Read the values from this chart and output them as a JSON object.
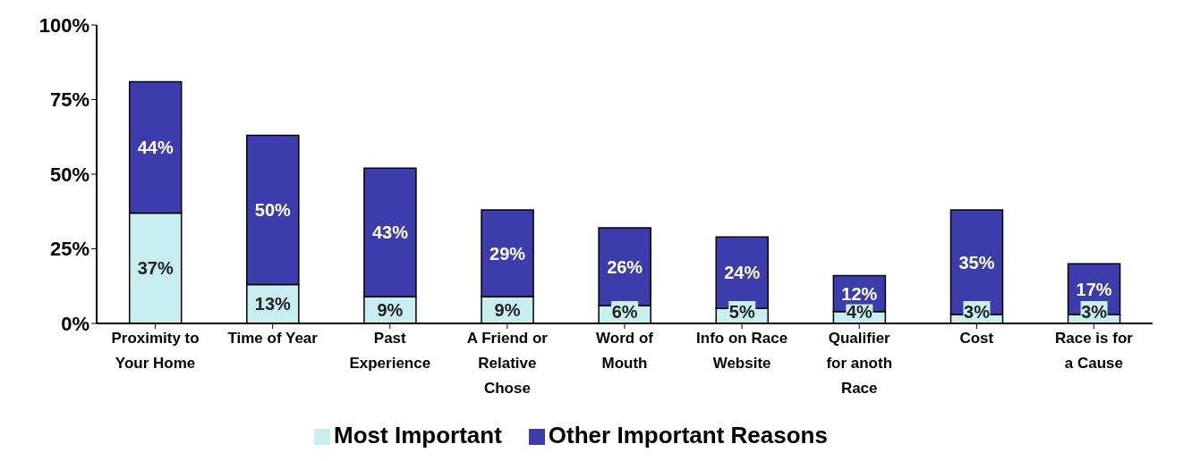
{
  "chart_data": {
    "type": "bar",
    "stacked": true,
    "categories": [
      "Proximity to Your Home",
      "Time of Year",
      "Past Experience",
      "A Friend or Relative Chose",
      "Word of Mouth",
      "Info on Race Website",
      "Qualifier for anoth Race",
      "Cost",
      "Race is for a Cause"
    ],
    "series": [
      {
        "name": "Most Important",
        "color": "#c8eef0",
        "values": [
          37,
          13,
          9,
          9,
          6,
          5,
          4,
          3,
          3
        ],
        "value_labels": [
          "37%",
          "13%",
          "9%",
          "9%",
          "6%",
          "5%",
          "4%",
          "3%",
          "3%"
        ]
      },
      {
        "name": "Other Important Reasons",
        "color": "#3c3cac",
        "values": [
          44,
          50,
          43,
          29,
          26,
          24,
          12,
          35,
          17
        ],
        "value_labels": [
          "44%",
          "50%",
          "43%",
          "29%",
          "26%",
          "24%",
          "12%",
          "35%",
          "17%"
        ]
      }
    ],
    "ylim": [
      0,
      100
    ],
    "yticks": [
      {
        "value": 0,
        "label": "0%"
      },
      {
        "value": 25,
        "label": "25%"
      },
      {
        "value": 50,
        "label": "50%"
      },
      {
        "value": 75,
        "label": "75%"
      },
      {
        "value": 100,
        "label": "100%"
      }
    ],
    "grid": false,
    "legend": "bottom"
  }
}
